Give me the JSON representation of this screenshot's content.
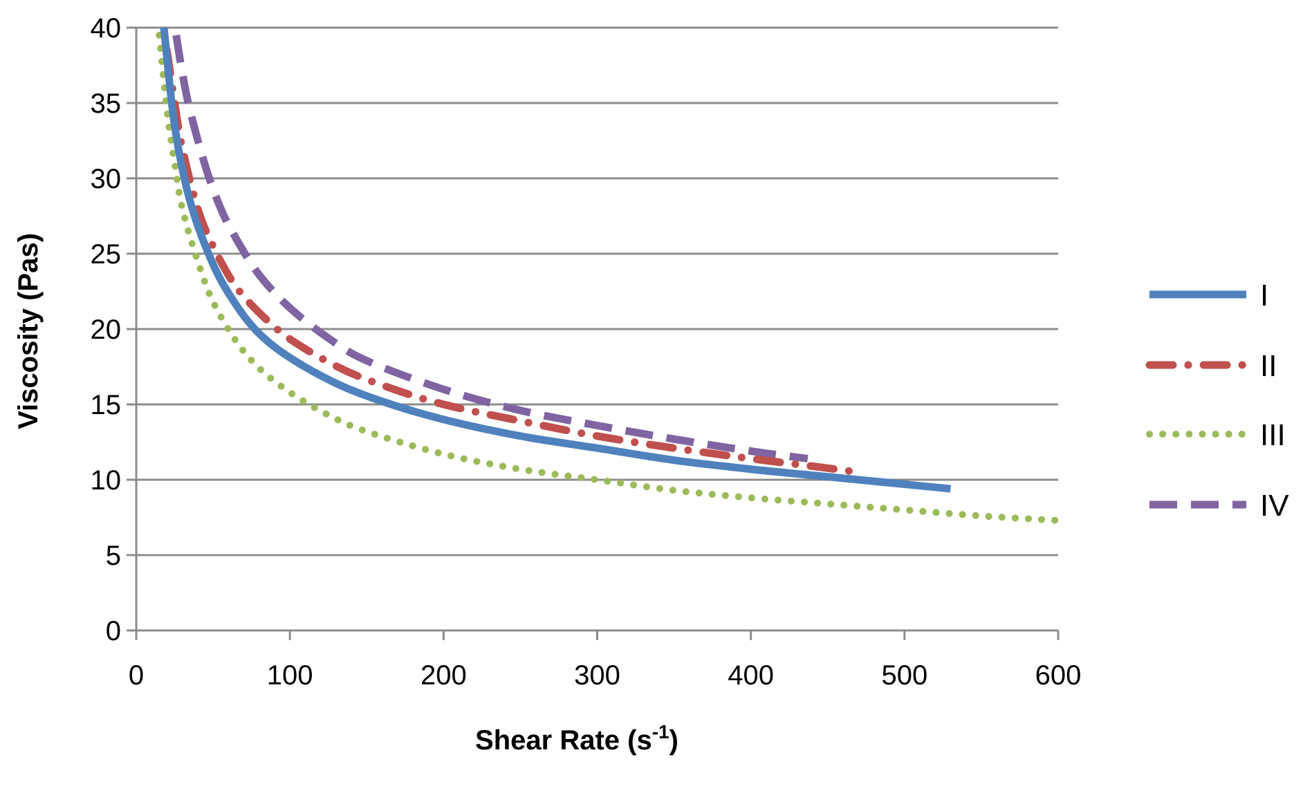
{
  "chart_data": {
    "type": "line",
    "title": "",
    "xlabel": "Shear Rate (s",
    "xlabel_sup": "-1",
    "xlabel_close": ")",
    "ylabel": "Viscosity (Pas)",
    "xlim": [
      0,
      600
    ],
    "ylim": [
      0,
      40
    ],
    "x_ticks": [
      0,
      100,
      200,
      300,
      400,
      500,
      600
    ],
    "y_ticks": [
      0,
      5,
      10,
      15,
      20,
      25,
      30,
      35,
      40
    ],
    "x_tick_labels": [
      "0",
      "100",
      "200",
      "300",
      "400",
      "500",
      "600"
    ],
    "y_tick_labels": [
      "0",
      "5",
      "10",
      "15",
      "20",
      "25",
      "30",
      "35",
      "40"
    ],
    "grid": "horizontal",
    "legend_position": "right",
    "series": [
      {
        "name": "I",
        "color": "#4F81BD",
        "style": "solid",
        "x": [
          18,
          25,
          35,
          50,
          65,
          80,
          100,
          130,
          160,
          200,
          250,
          300,
          350,
          400,
          450,
          500,
          530
        ],
        "y": [
          40,
          33.5,
          28.5,
          24.3,
          21.6,
          19.7,
          18.1,
          16.4,
          15.2,
          14.0,
          12.9,
          12.1,
          11.3,
          10.7,
          10.2,
          9.7,
          9.4
        ]
      },
      {
        "name": "II",
        "color": "#C0504D",
        "style": "dashdot",
        "x": [
          20,
          25,
          30,
          40,
          50,
          65,
          85,
          105,
          135,
          165,
          200,
          250,
          300,
          350,
          400,
          440,
          470
        ],
        "y": [
          38.5,
          35,
          32,
          28,
          25.5,
          22.8,
          20.6,
          19.0,
          17.3,
          16.1,
          15.0,
          13.9,
          12.9,
          12.1,
          11.4,
          10.9,
          10.5
        ]
      },
      {
        "name": "III",
        "color": "#9BBB59",
        "style": "dotted",
        "x": [
          15,
          20,
          25,
          30,
          40,
          50,
          65,
          80,
          100,
          125,
          150,
          200,
          250,
          300,
          350,
          400,
          450,
          500,
          550,
          600
        ],
        "y": [
          39.5,
          34.5,
          31,
          28,
          24.5,
          21.8,
          19.2,
          17.4,
          15.8,
          14.3,
          13.2,
          11.7,
          10.7,
          10.0,
          9.3,
          8.8,
          8.4,
          8.0,
          7.6,
          7.3
        ]
      },
      {
        "name": "IV",
        "color": "#8064A2",
        "style": "dashed",
        "x": [
          26,
          30,
          35,
          45,
          55,
          65,
          80,
          100,
          125,
          150,
          200,
          250,
          300,
          350,
          400,
          437
        ],
        "y": [
          39.5,
          37,
          34.5,
          30.8,
          28.0,
          26.0,
          23.6,
          21.4,
          19.4,
          17.9,
          16.0,
          14.6,
          13.6,
          12.7,
          11.9,
          11.4
        ]
      }
    ]
  }
}
